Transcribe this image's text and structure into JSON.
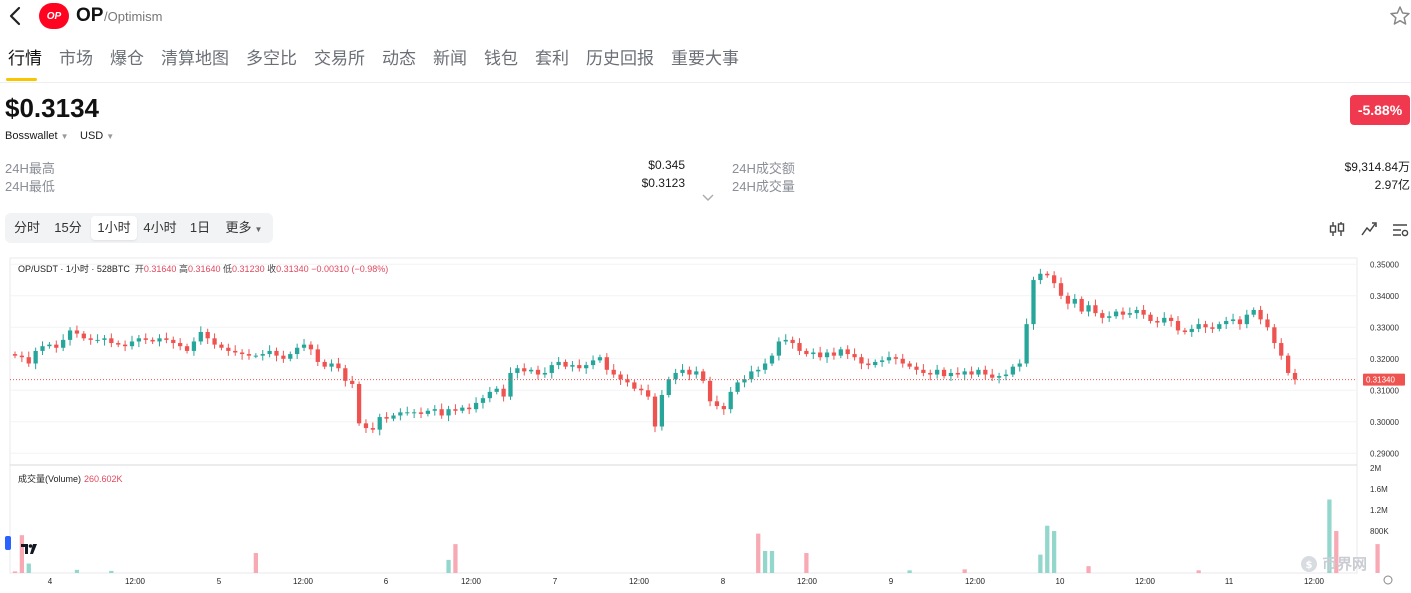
{
  "header": {
    "symbol": "OP",
    "chain": "/Optimism",
    "logo_text": "OP",
    "icons": [
      "back-arrow-icon",
      "star-icon"
    ]
  },
  "tabs": [
    "行情",
    "市场",
    "爆仓",
    "清算地图",
    "多空比",
    "交易所",
    "动态",
    "新闻",
    "钱包",
    "套利",
    "历史回报",
    "重要大事"
  ],
  "price": {
    "value": "$0.3134",
    "change": "-5.88%",
    "exchange": "Bosswallet",
    "currency": "USD"
  },
  "stats": {
    "high_label": "24H最高",
    "high": "$0.345",
    "low_label": "24H最低",
    "low": "$0.3123",
    "turnover_label": "24H成交额",
    "turnover": "$9,314.84万",
    "volume_label": "24H成交量",
    "volume": "2.97亿"
  },
  "intervals": [
    "分时",
    "15分",
    "1小时",
    "4小时",
    "1日",
    "更多"
  ],
  "active_interval": "1小时",
  "colors": {
    "up": "#26a69a",
    "down": "#ef5350",
    "accent": "#f7c600",
    "change_bg": "#f0394f"
  },
  "chart_data": {
    "type": "candlestick",
    "title": "OP/USDT · 1小时 · 528BTC",
    "ohlc_label": {
      "open_label": "开",
      "open": "0.31640",
      "high_label": "高",
      "high": "0.31640",
      "low_label": "低",
      "low": "0.31230",
      "close_label": "收",
      "close": "0.31340",
      "change": "−0.00310 (−0.98%)"
    },
    "last_price_label": "0.31340",
    "y_ticks": [
      "0.35000",
      "0.34000",
      "0.33000",
      "0.32000",
      "0.31000",
      "0.30000",
      "0.29000"
    ],
    "ylim": [
      0.2885,
      0.352
    ],
    "x_ticks": [
      "4",
      "12:00",
      "5",
      "12:00",
      "6",
      "12:00",
      "7",
      "12:00",
      "8",
      "12:00",
      "9",
      "12:00",
      "10",
      "12:00",
      "11",
      "12:00"
    ],
    "close": [
      0.321,
      0.3205,
      0.3185,
      0.3225,
      0.324,
      0.3245,
      0.3235,
      0.326,
      0.329,
      0.328,
      0.3265,
      0.326,
      0.326,
      0.3265,
      0.325,
      0.3245,
      0.324,
      0.3255,
      0.3265,
      0.326,
      0.3255,
      0.3265,
      0.326,
      0.325,
      0.324,
      0.3225,
      0.3255,
      0.3285,
      0.3265,
      0.3245,
      0.3235,
      0.3225,
      0.322,
      0.3215,
      0.321,
      0.321,
      0.3215,
      0.3225,
      0.321,
      0.32,
      0.3215,
      0.3235,
      0.3245,
      0.323,
      0.319,
      0.3175,
      0.3185,
      0.317,
      0.313,
      0.312,
      0.2995,
      0.298,
      0.2975,
      0.3015,
      0.301,
      0.302,
      0.303,
      0.303,
      0.303,
      0.3025,
      0.3035,
      0.304,
      0.302,
      0.304,
      0.3035,
      0.3045,
      0.304,
      0.306,
      0.3075,
      0.3095,
      0.3105,
      0.308,
      0.3155,
      0.317,
      0.316,
      0.3165,
      0.315,
      0.3155,
      0.318,
      0.319,
      0.3175,
      0.318,
      0.317,
      0.318,
      0.3195,
      0.3205,
      0.3165,
      0.315,
      0.3135,
      0.3125,
      0.3105,
      0.31,
      0.308,
      0.2985,
      0.3085,
      0.3135,
      0.3155,
      0.3165,
      0.315,
      0.316,
      0.313,
      0.3065,
      0.305,
      0.304,
      0.3095,
      0.3125,
      0.3135,
      0.316,
      0.3165,
      0.3185,
      0.321,
      0.3255,
      0.326,
      0.325,
      0.3225,
      0.3215,
      0.322,
      0.3205,
      0.322,
      0.321,
      0.323,
      0.3215,
      0.3205,
      0.3185,
      0.318,
      0.319,
      0.3195,
      0.3205,
      0.32,
      0.3185,
      0.3175,
      0.3165,
      0.3155,
      0.315,
      0.3165,
      0.3145,
      0.3155,
      0.315,
      0.316,
      0.315,
      0.3165,
      0.315,
      0.314,
      0.3145,
      0.315,
      0.3175,
      0.3185,
      0.331,
      0.345,
      0.347,
      0.3465,
      0.344,
      0.34,
      0.3375,
      0.339,
      0.335,
      0.337,
      0.3345,
      0.333,
      0.3335,
      0.335,
      0.334,
      0.3345,
      0.3355,
      0.334,
      0.332,
      0.3315,
      0.333,
      0.332,
      0.329,
      0.3285,
      0.3295,
      0.331,
      0.33,
      0.3295,
      0.331,
      0.332,
      0.3325,
      0.331,
      0.334,
      0.3355,
      0.3325,
      0.33,
      0.325,
      0.321,
      0.3155,
      0.3134
    ],
    "volume_yticks": [
      "2M",
      "1.6M",
      "1.2M",
      "800K"
    ],
    "volume_ylim": [
      0,
      2000000
    ],
    "volume_legend": "成交量(Volume)",
    "volume_value": "260.602K",
    "volume_bars": [
      [
        0,
        0.03,
        "down"
      ],
      [
        1,
        0.72,
        "down"
      ],
      [
        2,
        0.18,
        "up"
      ],
      [
        9,
        0.06,
        "up"
      ],
      [
        14,
        0.04,
        "up"
      ],
      [
        35,
        0.38,
        "down"
      ],
      [
        63,
        0.25,
        "up"
      ],
      [
        64,
        0.55,
        "down"
      ],
      [
        108,
        0.75,
        "down"
      ],
      [
        109,
        0.42,
        "up"
      ],
      [
        110,
        0.42,
        "up"
      ],
      [
        115,
        0.38,
        "down"
      ],
      [
        130,
        0.05,
        "up"
      ],
      [
        138,
        0.07,
        "down"
      ],
      [
        149,
        0.35,
        "up"
      ],
      [
        150,
        0.9,
        "up"
      ],
      [
        151,
        0.8,
        "up"
      ],
      [
        156,
        0.13,
        "down"
      ],
      [
        172,
        0.05,
        "down"
      ],
      [
        191,
        1.4,
        "up"
      ],
      [
        192,
        0.8,
        "down"
      ],
      [
        198,
        0.55,
        "down"
      ]
    ]
  },
  "watermark": "币界网"
}
